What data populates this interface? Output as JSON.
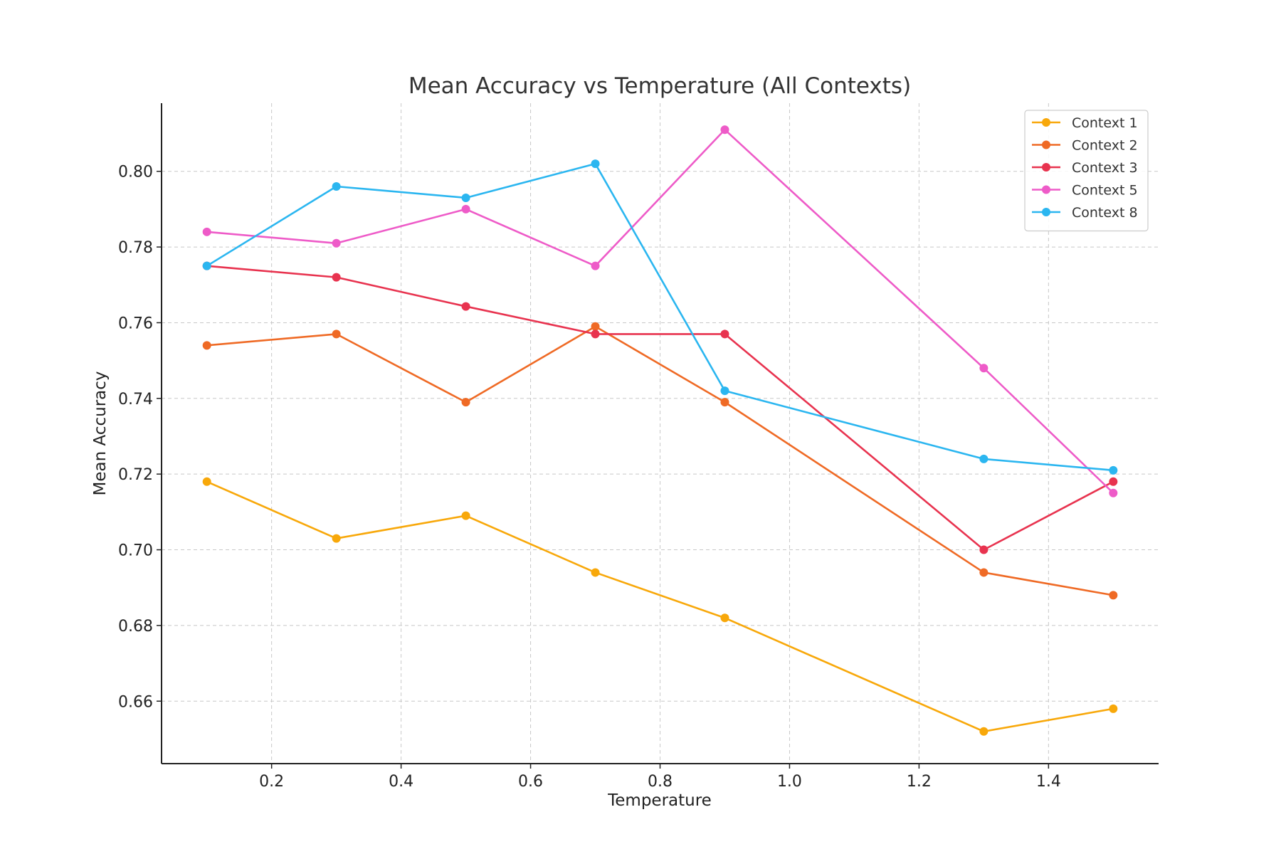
{
  "chart_data": {
    "type": "line",
    "title": "Mean Accuracy vs Temperature (All Contexts)",
    "xlabel": "Temperature",
    "ylabel": "Mean Accuracy",
    "xlim": [
      0.03,
      1.57
    ],
    "ylim": [
      0.6435,
      0.818
    ],
    "xticks": [
      0.2,
      0.4,
      0.6,
      0.8,
      1.0,
      1.2,
      1.4
    ],
    "xtick_labels": [
      "0.2",
      "0.4",
      "0.6",
      "0.8",
      "1.0",
      "1.2",
      "1.4"
    ],
    "yticks": [
      0.66,
      0.68,
      0.7,
      0.72,
      0.74,
      0.76,
      0.78,
      0.8
    ],
    "ytick_labels": [
      "0.66",
      "0.68",
      "0.70",
      "0.72",
      "0.74",
      "0.76",
      "0.78",
      "0.80"
    ],
    "grid": true,
    "legend_position": "top-right",
    "x": [
      0.1,
      0.3,
      0.5,
      0.7,
      0.9,
      1.3,
      1.5
    ],
    "series": [
      {
        "name": "Context 1",
        "color": "#f8a80a",
        "values": [
          0.718,
          0.703,
          0.709,
          0.694,
          0.682,
          0.652,
          0.658
        ]
      },
      {
        "name": "Context 2",
        "color": "#ef6a25",
        "values": [
          0.754,
          0.757,
          0.739,
          0.759,
          0.739,
          0.694,
          0.688
        ]
      },
      {
        "name": "Context 3",
        "color": "#e8334f",
        "values": [
          0.775,
          0.772,
          0.7643,
          0.757,
          0.757,
          0.7,
          0.718
        ]
      },
      {
        "name": "Context 5",
        "color": "#ee5bc8",
        "values": [
          0.784,
          0.781,
          0.79,
          0.775,
          0.811,
          0.748,
          0.715
        ]
      },
      {
        "name": "Context 8",
        "color": "#2bb6f0",
        "values": [
          0.775,
          0.796,
          0.793,
          0.802,
          0.742,
          0.724,
          0.721
        ]
      }
    ]
  }
}
